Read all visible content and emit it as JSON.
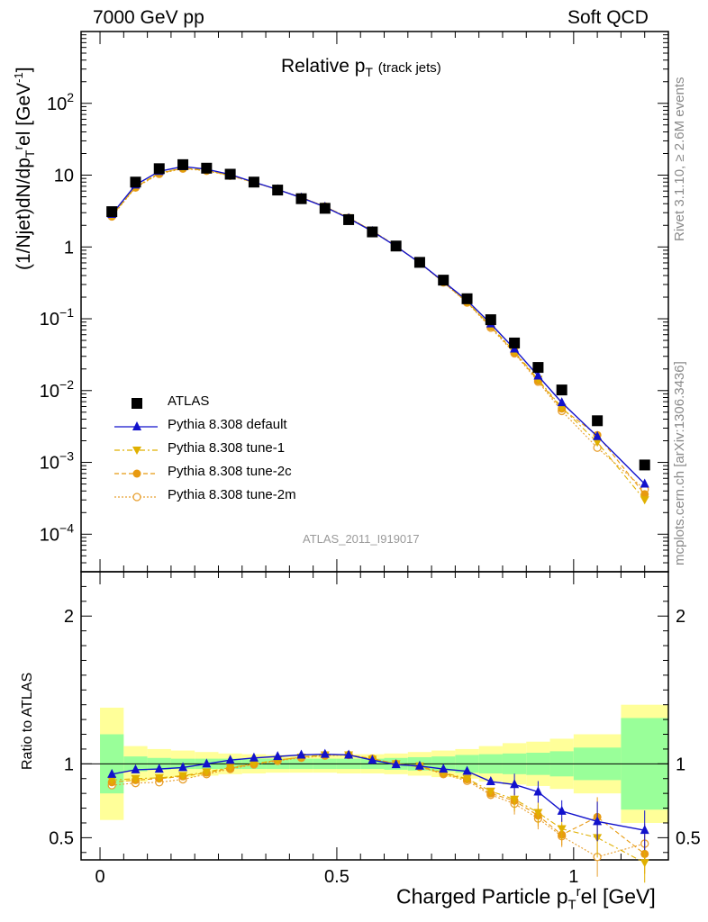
{
  "header": {
    "left": "7000 GeV pp",
    "right": "Soft QCD"
  },
  "side_labels": {
    "top": "Rivet 3.1.10, ≥ 2.6M events",
    "bottom": "mcplots.cern.ch [arXiv:1306.3436]"
  },
  "colors": {
    "atlas": "#000000",
    "default": "#1212cc",
    "tune1": "#e0b000",
    "tune2c": "#e89a10",
    "tune2m": "#e8a030",
    "band_inner": "#99ff99",
    "band_outer": "#ffff99"
  },
  "chart_data": [
    {
      "type": "scatter",
      "panel": "main",
      "title": "Relative p_T (track jets)",
      "title_main": "Relative p",
      "title_sub": "T",
      "title_extra": "(track jets)",
      "ylabel": "(1/Njet)dN/dp_T^rel [GeV^-1]",
      "ylabel_parts": [
        "(1/Njet)dN/dp",
        "T",
        "r",
        "el [GeV",
        "-1",
        "]"
      ],
      "xlim": [
        -0.04,
        1.2
      ],
      "ylim": [
        3e-05,
        1000
      ],
      "yscale": "log",
      "grid": false,
      "yticks": [
        {
          "value": 0.0001,
          "base": "10",
          "exp": "−4"
        },
        {
          "value": 0.001,
          "base": "10",
          "exp": "−3"
        },
        {
          "value": 0.01,
          "base": "10",
          "exp": "−2"
        },
        {
          "value": 0.1,
          "base": "10",
          "exp": "−1"
        },
        {
          "value": 1,
          "base": "1",
          "exp": ""
        },
        {
          "value": 10,
          "base": "10",
          "exp": ""
        },
        {
          "value": 100,
          "base": "10",
          "exp": "2"
        }
      ],
      "watermark": "ATLAS_2011_I919017",
      "legend_position": "bottom-left",
      "x": [
        0.025,
        0.075,
        0.125,
        0.175,
        0.225,
        0.275,
        0.325,
        0.375,
        0.425,
        0.475,
        0.525,
        0.575,
        0.625,
        0.675,
        0.725,
        0.775,
        0.825,
        0.875,
        0.925,
        0.975,
        1.05,
        1.15
      ],
      "series": [
        {
          "name": "ATLAS",
          "key": "atlas",
          "marker": "square",
          "values": [
            3.1,
            8.0,
            12.3,
            14.0,
            12.5,
            10.3,
            8.0,
            6.2,
            4.7,
            3.45,
            2.4,
            1.62,
            1.03,
            0.61,
            0.345,
            0.19,
            0.097,
            0.046,
            0.021,
            0.0102,
            0.0038,
            0.00092
          ]
        },
        {
          "name": "Pythia 8.308 default",
          "key": "default",
          "marker": "triangle-up",
          "line": "solid",
          "values": [
            2.85,
            7.3,
            11.3,
            13.2,
            12.1,
            10.2,
            8.0,
            6.3,
            4.85,
            3.6,
            2.5,
            1.65,
            1.02,
            0.6,
            0.33,
            0.18,
            0.085,
            0.038,
            0.016,
            0.0068,
            0.0023,
            0.0005
          ]
        },
        {
          "name": "Pythia 8.308 tune-1",
          "key": "tune1",
          "marker": "triangle-down",
          "line": "dashdot",
          "values": [
            2.72,
            6.9,
            10.7,
            12.6,
            11.7,
            9.9,
            7.9,
            6.3,
            4.9,
            3.65,
            2.55,
            1.68,
            1.03,
            0.6,
            0.325,
            0.172,
            0.079,
            0.035,
            0.0143,
            0.0058,
            0.0019,
            0.0003
          ]
        },
        {
          "name": "Pythia 8.308 tune-2c",
          "key": "tune2c",
          "marker": "circle",
          "line": "dashed",
          "values": [
            2.72,
            6.8,
            10.6,
            12.5,
            11.6,
            9.9,
            7.9,
            6.3,
            4.9,
            3.65,
            2.55,
            1.68,
            1.03,
            0.6,
            0.323,
            0.17,
            0.078,
            0.034,
            0.0138,
            0.0056,
            0.0024,
            0.00036
          ]
        },
        {
          "name": "Pythia 8.308 tune-2m",
          "key": "tune2m",
          "marker": "open-circle",
          "line": "dotted",
          "values": [
            2.65,
            6.7,
            10.4,
            12.3,
            11.5,
            9.8,
            7.9,
            6.3,
            4.9,
            3.65,
            2.55,
            1.68,
            1.03,
            0.6,
            0.32,
            0.168,
            0.075,
            0.033,
            0.0133,
            0.0052,
            0.0016,
            0.00042
          ]
        }
      ]
    },
    {
      "type": "scatter",
      "panel": "ratio",
      "ylabel": "Ratio to ATLAS",
      "xlabel": "Charged Particle p_T^rel [GeV]",
      "xlabel_parts": [
        "Charged Particle p",
        "T",
        "r",
        "el [GeV]"
      ],
      "xlim": [
        -0.04,
        1.2
      ],
      "ylim": [
        0.35,
        2.3
      ],
      "xticks": [
        {
          "value": 0,
          "label": "0"
        },
        {
          "value": 0.5,
          "label": "0.5"
        },
        {
          "value": 1,
          "label": "1"
        }
      ],
      "yticks": [
        {
          "value": 0.5,
          "label": "0.5"
        },
        {
          "value": 1,
          "label": "1"
        },
        {
          "value": 2,
          "label": "2"
        }
      ],
      "bin_edges": [
        0,
        0.05,
        0.1,
        0.15,
        0.2,
        0.25,
        0.3,
        0.35,
        0.4,
        0.45,
        0.5,
        0.55,
        0.6,
        0.65,
        0.7,
        0.75,
        0.8,
        0.85,
        0.9,
        0.95,
        1.0,
        1.1,
        1.2
      ],
      "band_inner": [
        0.2,
        0.05,
        0.04,
        0.035,
        0.035,
        0.035,
        0.035,
        0.035,
        0.035,
        0.035,
        0.035,
        0.035,
        0.04,
        0.045,
        0.05,
        0.06,
        0.065,
        0.07,
        0.075,
        0.085,
        0.11,
        0.31
      ],
      "band_outer": [
        0.38,
        0.12,
        0.1,
        0.09,
        0.08,
        0.07,
        0.065,
        0.06,
        0.06,
        0.06,
        0.065,
        0.065,
        0.07,
        0.08,
        0.09,
        0.1,
        0.12,
        0.14,
        0.15,
        0.17,
        0.2,
        0.4
      ],
      "x": [
        0.025,
        0.075,
        0.125,
        0.175,
        0.225,
        0.275,
        0.325,
        0.375,
        0.425,
        0.475,
        0.525,
        0.575,
        0.625,
        0.675,
        0.725,
        0.775,
        0.825,
        0.875,
        0.925,
        0.975,
        1.05,
        1.15
      ],
      "series": [
        {
          "name": "Pythia 8.308 default",
          "key": "default",
          "marker": "triangle-up",
          "line": "solid",
          "values": [
            0.93,
            0.96,
            0.965,
            0.975,
            1.0,
            1.025,
            1.04,
            1.05,
            1.06,
            1.065,
            1.06,
            1.025,
            0.995,
            0.985,
            0.965,
            0.95,
            0.88,
            0.86,
            0.81,
            0.68,
            0.61,
            0.55
          ]
        },
        {
          "name": "Pythia 8.308 tune-1",
          "key": "tune1",
          "marker": "triangle-down",
          "line": "dashdot",
          "values": [
            0.89,
            0.9,
            0.905,
            0.92,
            0.945,
            0.975,
            1.0,
            1.025,
            1.045,
            1.06,
            1.06,
            1.03,
            1.0,
            0.985,
            0.94,
            0.9,
            0.815,
            0.76,
            0.67,
            0.56,
            0.5,
            0.33
          ]
        },
        {
          "name": "Pythia 8.308 tune-2c",
          "key": "tune2c",
          "marker": "circle",
          "line": "dashed",
          "values": [
            0.875,
            0.89,
            0.9,
            0.915,
            0.94,
            0.97,
            1.0,
            1.025,
            1.045,
            1.06,
            1.06,
            1.035,
            1.0,
            0.98,
            0.935,
            0.895,
            0.8,
            0.75,
            0.65,
            0.52,
            0.64,
            0.39
          ]
        },
        {
          "name": "Pythia 8.308 tune-2m",
          "key": "tune2m",
          "marker": "open-circle",
          "line": "dotted",
          "values": [
            0.855,
            0.87,
            0.875,
            0.895,
            0.93,
            0.965,
            0.995,
            1.02,
            1.04,
            1.055,
            1.06,
            1.035,
            1.0,
            0.98,
            0.93,
            0.885,
            0.79,
            0.73,
            0.63,
            0.51,
            0.37,
            0.46
          ]
        }
      ]
    }
  ]
}
